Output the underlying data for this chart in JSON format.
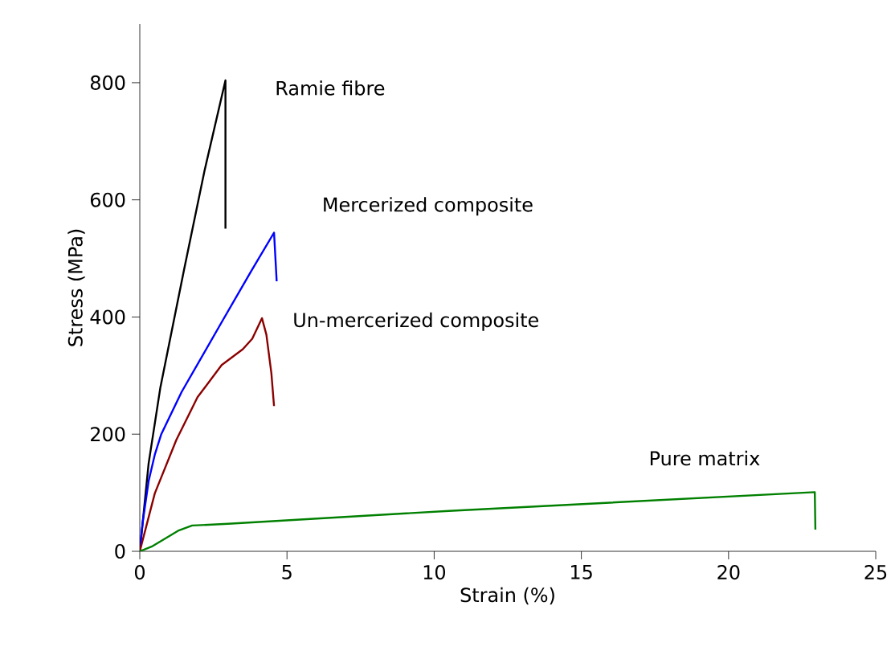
{
  "chart_data": {
    "type": "line",
    "xlabel": "Strain (%)",
    "ylabel": "Stress (MPa)",
    "xlim": [
      0,
      25
    ],
    "ylim": [
      0,
      900
    ],
    "xticks": [
      0,
      5,
      10,
      15,
      20,
      25
    ],
    "yticks": [
      0,
      200,
      400,
      600,
      800
    ],
    "grid": false,
    "legend": false,
    "marker": "none",
    "line_style": "solid",
    "series": [
      {
        "name": "Ramie fibre",
        "color": "#000000",
        "x": [
          0,
          0.3,
          0.7,
          1.5,
          2.2,
          2.91,
          2.91
        ],
        "values": [
          0,
          150,
          280,
          480,
          650,
          804,
          551
        ]
      },
      {
        "name": "Mercerized composite",
        "color": "#0000ff",
        "x": [
          0,
          0.1,
          0.3,
          0.51,
          0.73,
          1.42,
          2.78,
          3.78,
          4.56,
          4.65
        ],
        "values": [
          0,
          50,
          120,
          165,
          200,
          272,
          391,
          478,
          544,
          461
        ]
      },
      {
        "name": "Un-mercerized composite",
        "color": "#8b0000",
        "x": [
          0,
          0.51,
          1.24,
          1.96,
          2.78,
          3.5,
          3.82,
          4.15,
          4.3,
          4.47,
          4.56
        ],
        "values": [
          0,
          99,
          190,
          263,
          318,
          345,
          363,
          398,
          370,
          304,
          248
        ]
      },
      {
        "name": "Pure matrix",
        "color": "#008000",
        "x": [
          0,
          0.4,
          0.8,
          1.3,
          1.78,
          3,
          10.5,
          22.93,
          22.95
        ],
        "values": [
          0,
          8,
          20,
          35,
          44,
          47,
          69,
          101,
          37
        ]
      }
    ]
  }
}
